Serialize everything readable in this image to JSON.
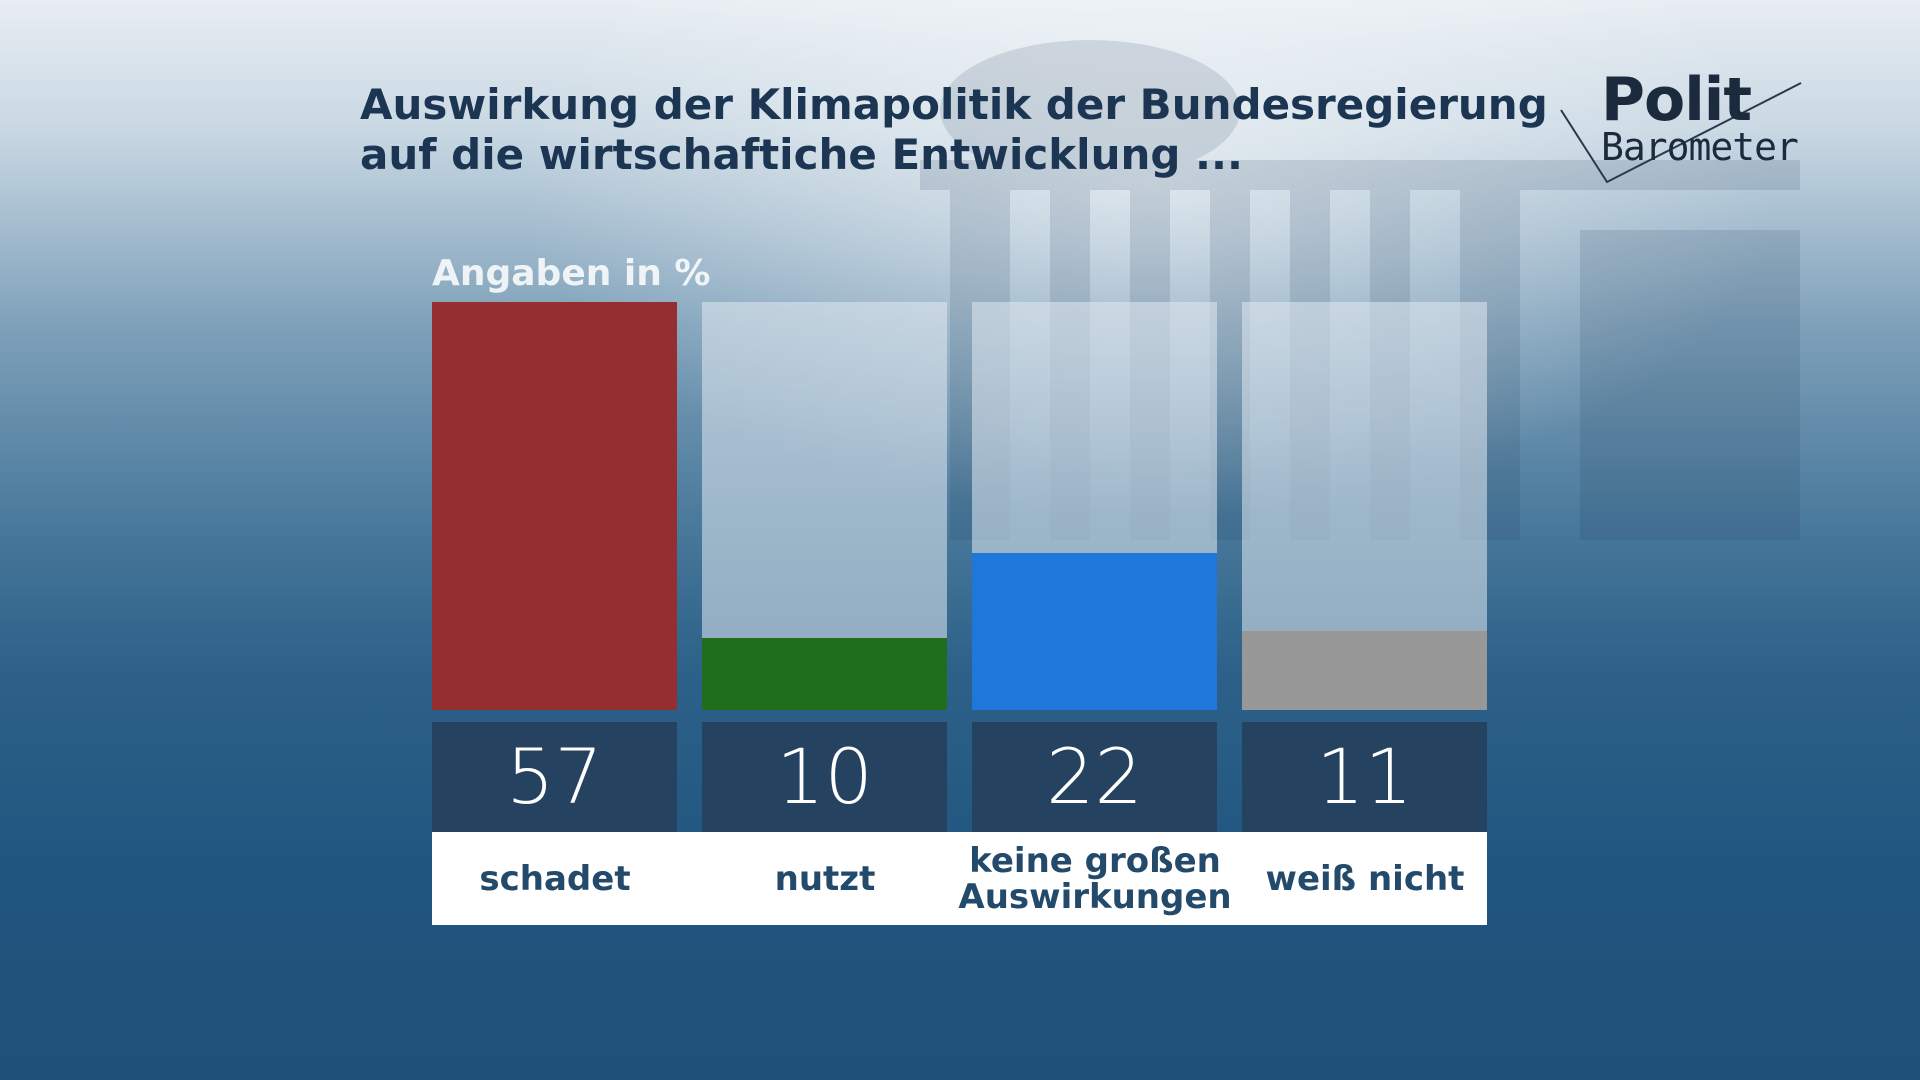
{
  "title_line1": "Auswirkung der Klimapolitik der Bundesregierung",
  "title_line2": "auf die wirtschaftiche Entwicklung ...",
  "logo": {
    "top": "Polit",
    "bottom": "Barometer"
  },
  "unit_label": "Angaben in %",
  "chart_data": {
    "type": "bar",
    "categories": [
      "schadet",
      "nutzt",
      "keine großen Auswirkungen",
      "weiß nicht"
    ],
    "values": [
      57,
      10,
      22,
      11
    ],
    "ylim": [
      0,
      57
    ],
    "colors": [
      "#952e31",
      "#1e6e1e",
      "#1f78d9",
      "#989898"
    ],
    "unit": "Angaben in %",
    "grid": false
  }
}
